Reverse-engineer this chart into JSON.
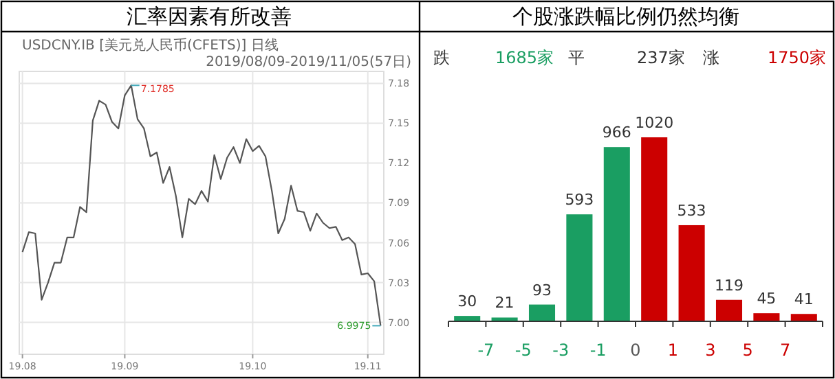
{
  "chart_data": [
    {
      "type": "line",
      "title": "汇率因素有所改善",
      "annotations": [
        "USDCNY.IB [美元兑人民币(CFETS)] 日线",
        "2019/08/09-2019/11/05(57日)",
        "7.1785",
        "6.9975"
      ],
      "categories": [
        "19.08",
        null,
        null,
        null,
        null,
        null,
        null,
        null,
        null,
        null,
        null,
        null,
        null,
        null,
        null,
        null,
        "19.09",
        null,
        null,
        null,
        null,
        null,
        null,
        null,
        null,
        null,
        null,
        null,
        null,
        null,
        null,
        null,
        null,
        null,
        null,
        null,
        "19.10",
        null,
        null,
        null,
        null,
        null,
        null,
        null,
        null,
        null,
        null,
        null,
        null,
        null,
        null,
        null,
        null,
        null,
        "19.11",
        null,
        null
      ],
      "values": [
        7.053,
        7.068,
        7.067,
        7.017,
        7.03,
        7.045,
        7.045,
        7.064,
        7.064,
        7.087,
        7.083,
        7.152,
        7.167,
        7.164,
        7.151,
        7.146,
        7.171,
        7.1785,
        7.153,
        7.146,
        7.125,
        7.128,
        7.105,
        7.117,
        7.095,
        7.064,
        7.093,
        7.089,
        7.099,
        7.091,
        7.126,
        7.108,
        7.124,
        7.132,
        7.12,
        7.138,
        7.129,
        7.133,
        7.125,
        7.099,
        7.067,
        7.078,
        7.103,
        7.084,
        7.083,
        7.069,
        7.082,
        7.075,
        7.071,
        7.072,
        7.062,
        7.064,
        7.059,
        7.036,
        7.037,
        7.031,
        6.9975
      ],
      "color": "#555555",
      "ylim": [
        6.976,
        7.189
      ],
      "yticks": [
        {
          "value": 7.0,
          "label": "7.00"
        },
        {
          "value": 7.03,
          "label": "7.03"
        },
        {
          "value": 7.06,
          "label": "7.06"
        },
        {
          "value": 7.09,
          "label": "7.09"
        },
        {
          "value": 7.12,
          "label": "7.12"
        },
        {
          "value": 7.15,
          "label": "7.15"
        },
        {
          "value": 7.18,
          "label": "7.18"
        }
      ],
      "grid": true
    },
    {
      "type": "bar",
      "title": "个股涨跌幅比例仍然均衡",
      "annotations": [
        "跌",
        "1685家",
        "平",
        "237家",
        "涨",
        "1750家",
        "-7",
        "-5",
        "-3",
        "-1",
        "0",
        "1",
        "3",
        "5",
        "7"
      ],
      "categories": [
        null,
        null,
        null,
        null,
        null,
        null,
        null,
        null,
        null,
        null
      ],
      "values": [
        30,
        21,
        93,
        593,
        966,
        1020,
        533,
        119,
        45,
        41
      ],
      "colors": [
        "#1a9e62",
        "#1a9e62",
        "#1a9e62",
        "#1a9e62",
        "#1a9e62",
        "#cc0000",
        "#cc0000",
        "#cc0000",
        "#cc0000",
        "#cc0000"
      ],
      "data_labels": true
    }
  ]
}
